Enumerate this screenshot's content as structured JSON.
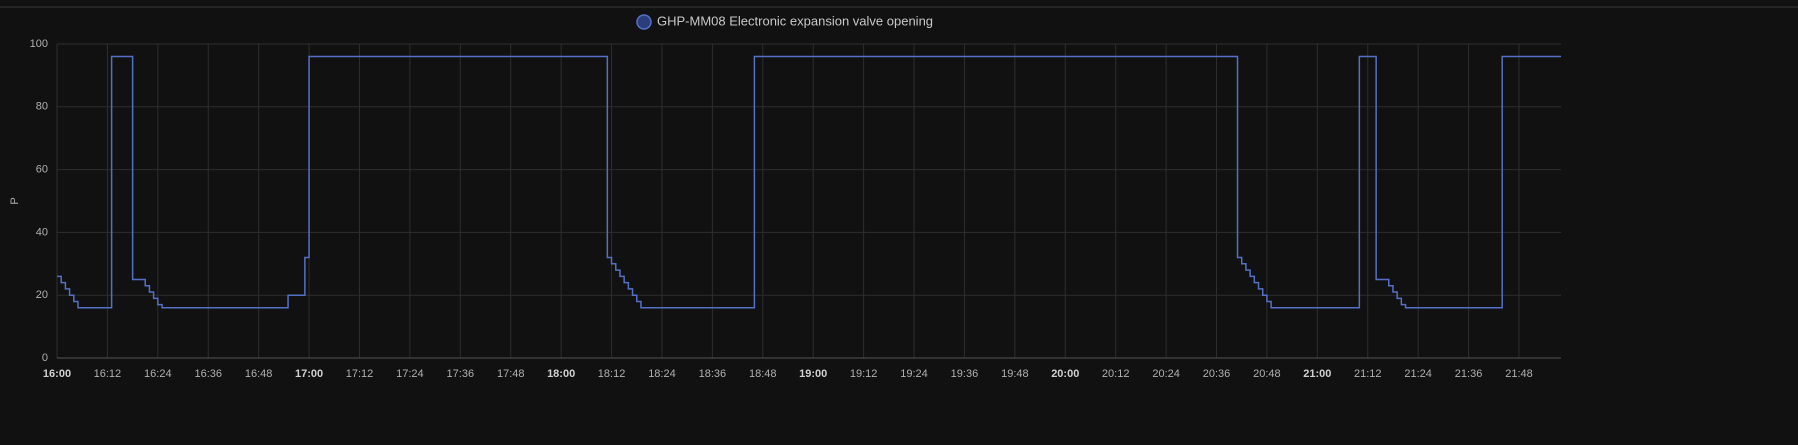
{
  "chart_data": {
    "type": "line",
    "step": true,
    "legend": "GHP-MM08 Electronic expansion valve opening",
    "y_label": "P",
    "x": [
      "16:00",
      "16:01",
      "16:02",
      "16:03",
      "16:04",
      "16:05",
      "16:13",
      "16:18",
      "16:21",
      "16:22",
      "16:23",
      "16:24",
      "16:25",
      "16:55",
      "16:59",
      "17:00",
      "18:11",
      "18:12",
      "18:13",
      "18:14",
      "18:15",
      "18:16",
      "18:17",
      "18:18",
      "18:19",
      "18:46",
      "20:41",
      "20:42",
      "20:43",
      "20:44",
      "20:45",
      "20:46",
      "20:47",
      "20:48",
      "20:49",
      "21:10",
      "21:14",
      "21:17",
      "21:18",
      "21:19",
      "21:20",
      "21:21",
      "21:44",
      "21:58"
    ],
    "series": [
      {
        "name": "GHP-MM08 Electronic expansion valve opening",
        "color": "#5470c6",
        "values": [
          26,
          24,
          22,
          20,
          18,
          16,
          96,
          25,
          23,
          21,
          19,
          17,
          16,
          20,
          32,
          96,
          32,
          30,
          28,
          26,
          24,
          22,
          20,
          18,
          16,
          96,
          32,
          30,
          28,
          26,
          24,
          22,
          20,
          18,
          16,
          96,
          25,
          23,
          21,
          19,
          17,
          16,
          96,
          96
        ]
      }
    ],
    "xlim": [
      "16:00",
      "21:58"
    ],
    "xticks": [
      "16:00",
      "16:12",
      "16:24",
      "16:36",
      "16:48",
      "17:00",
      "17:12",
      "17:24",
      "17:36",
      "17:48",
      "18:00",
      "18:12",
      "18:24",
      "18:36",
      "18:48",
      "19:00",
      "19:12",
      "19:24",
      "19:36",
      "19:48",
      "20:00",
      "20:12",
      "20:24",
      "20:36",
      "20:48",
      "21:00",
      "21:12",
      "21:24",
      "21:36",
      "21:48"
    ],
    "ylim": [
      0,
      100
    ],
    "yticks": [
      0,
      20,
      40,
      60,
      80,
      100
    ],
    "grid": true
  }
}
